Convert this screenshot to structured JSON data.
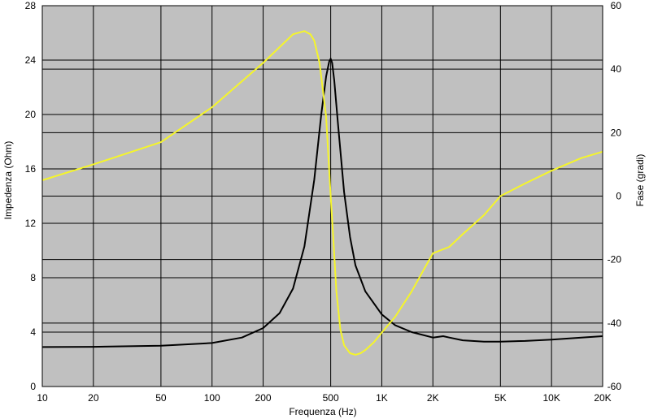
{
  "chart_data": {
    "type": "line",
    "xlabel": "Frequenza (Hz)",
    "ylabel_left": "Impedenza (Ohm)",
    "ylabel_right": "Fase (gradi)",
    "x_scale": "log",
    "xlim": [
      10,
      20000
    ],
    "ylim_left": [
      0,
      28
    ],
    "ylim_right": [
      -60,
      60
    ],
    "grid": true,
    "x_ticks": [
      {
        "value": 10,
        "label": "10"
      },
      {
        "value": 20,
        "label": "20"
      },
      {
        "value": 50,
        "label": "50"
      },
      {
        "value": 100,
        "label": "100"
      },
      {
        "value": 200,
        "label": "200"
      },
      {
        "value": 500,
        "label": "500"
      },
      {
        "value": 1000,
        "label": "1K"
      },
      {
        "value": 2000,
        "label": "2K"
      },
      {
        "value": 5000,
        "label": "5K"
      },
      {
        "value": 10000,
        "label": "10K"
      },
      {
        "value": 20000,
        "label": "20K"
      }
    ],
    "y_ticks_left": [
      {
        "value": 0,
        "label": "0"
      },
      {
        "value": 4,
        "label": "4"
      },
      {
        "value": 8,
        "label": "8"
      },
      {
        "value": 12,
        "label": "12"
      },
      {
        "value": 16,
        "label": "16"
      },
      {
        "value": 20,
        "label": "20"
      },
      {
        "value": 24,
        "label": "24"
      },
      {
        "value": 28,
        "label": "28"
      }
    ],
    "y_ticks_right": [
      {
        "value": -60,
        "label": "-60"
      },
      {
        "value": -40,
        "label": "-40"
      },
      {
        "value": -20,
        "label": "-20"
      },
      {
        "value": 0,
        "label": "0"
      },
      {
        "value": 20,
        "label": "20"
      },
      {
        "value": 40,
        "label": "40"
      },
      {
        "value": 60,
        "label": "60"
      }
    ],
    "series": [
      {
        "color": "#000000",
        "axis": "left",
        "x": [
          10,
          20,
          50,
          100,
          150,
          200,
          250,
          300,
          350,
          400,
          440,
          470,
          490,
          500,
          510,
          525,
          550,
          600,
          650,
          700,
          800,
          1000,
          1200,
          1500,
          2000,
          2300,
          2500,
          3000,
          4000,
          5000,
          7000,
          10000,
          15000,
          20000
        ],
        "y": [
          2.9,
          2.92,
          3.0,
          3.2,
          3.6,
          4.3,
          5.4,
          7.2,
          10.3,
          15.2,
          20.0,
          22.8,
          23.9,
          24.1,
          23.8,
          22.5,
          19.5,
          14.3,
          11.0,
          8.9,
          7.0,
          5.3,
          4.5,
          4.0,
          3.6,
          3.7,
          3.6,
          3.4,
          3.3,
          3.3,
          3.35,
          3.45,
          3.6,
          3.7
        ]
      },
      {
        "color": "#f5f52a",
        "axis": "right",
        "x": [
          10,
          20,
          50,
          100,
          200,
          300,
          350,
          380,
          400,
          430,
          470,
          500,
          520,
          540,
          570,
          600,
          650,
          700,
          750,
          800,
          900,
          1000,
          1200,
          1500,
          2000,
          2500,
          3000,
          4000,
          5000,
          7000,
          10000,
          15000,
          20000
        ],
        "y": [
          5,
          10,
          17,
          28,
          42,
          51,
          52,
          51,
          49,
          42,
          25,
          0,
          -15,
          -30,
          -42,
          -47,
          -49.5,
          -50,
          -49.5,
          -48.5,
          -46,
          -43,
          -38,
          -30,
          -18,
          -16,
          -12,
          -6,
          0,
          4,
          8,
          12,
          14
        ]
      }
    ]
  }
}
